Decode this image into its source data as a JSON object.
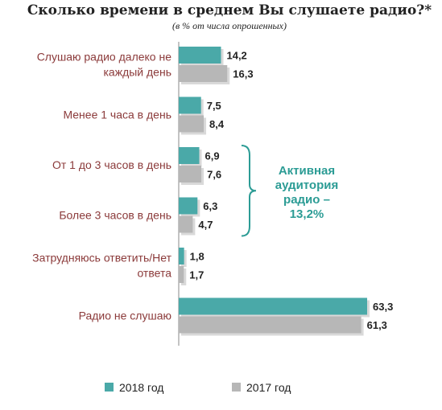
{
  "chart_data": {
    "type": "bar",
    "orientation": "horizontal",
    "title": "Сколько времени в среднем Вы слушаете радио?*",
    "subtitle": "(в % от числа опрошенных)",
    "categories": [
      [
        "Слушаю радио далеко не",
        "каждый день"
      ],
      [
        "Менее 1 часа в день"
      ],
      [
        "От 1 до 3 часов в день"
      ],
      [
        "Более 3 часов в день"
      ],
      [
        "Затрудняюсь ответить/Нет",
        "ответа"
      ],
      [
        "Радио не слушаю"
      ]
    ],
    "series": [
      {
        "name": "2018 год",
        "values": [
          14.2,
          7.5,
          6.9,
          6.3,
          1.8,
          63.3
        ],
        "labels": [
          "14,2",
          "7,5",
          "6,9",
          "6,3",
          "1,8",
          "63,3"
        ]
      },
      {
        "name": "2017 год",
        "values": [
          16.3,
          8.4,
          7.6,
          4.7,
          1.7,
          61.3
        ],
        "labels": [
          "16,3",
          "8,4",
          "7,6",
          "4,7",
          "1,7",
          "61,3"
        ]
      }
    ],
    "annotation": {
      "lines": [
        "Активная",
        "аудитория",
        "радио –",
        "13,2%"
      ],
      "brace_categories": [
        2,
        3
      ]
    },
    "xlim": [
      0,
      66
    ],
    "grid": false,
    "legend": "bottom"
  },
  "colors": {
    "series_2018": "#4aa9a8",
    "series_2017": "#b7b7b7",
    "annotation": "#2c9c95",
    "axis": "#8a8a8a",
    "category_text": "#8b3a3a"
  }
}
